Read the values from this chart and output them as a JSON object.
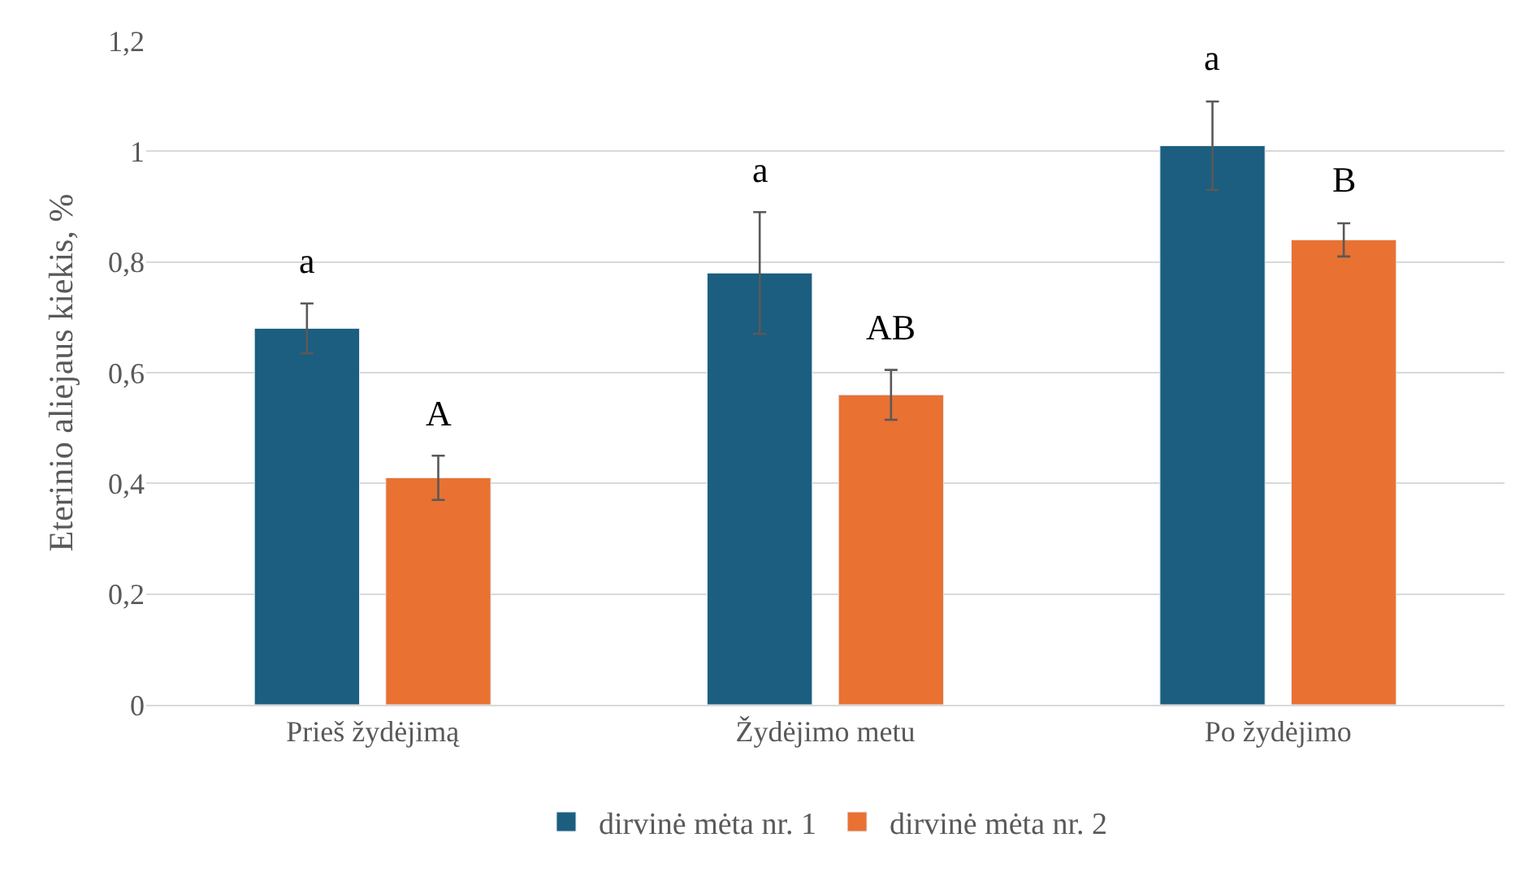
{
  "chart_data": {
    "type": "bar",
    "ylabel": "Eterinio aliejaus kiekis, %",
    "categories": [
      "Prieš žydėjimą",
      "Žydėjimo metu",
      "Po žydėjimo"
    ],
    "series": [
      {
        "name": "dirvinė mėta nr. 1",
        "color": "#1b5e7f",
        "values": [
          0.68,
          0.78,
          1.01
        ],
        "errors": [
          0.045,
          0.11,
          0.08
        ],
        "value_labels": [
          "a",
          "a",
          "a"
        ]
      },
      {
        "name": "dirvinė mėta nr. 2",
        "color": "#e97132",
        "values": [
          0.41,
          0.56,
          0.84
        ],
        "errors": [
          0.04,
          0.045,
          0.03
        ],
        "value_labels": [
          "A",
          "AB",
          "B"
        ]
      }
    ],
    "ylim": [
      0,
      1.2
    ],
    "yticks": [
      {
        "value": 0,
        "label": "0"
      },
      {
        "value": 0.2,
        "label": "0,2"
      },
      {
        "value": 0.4,
        "label": "0,4"
      },
      {
        "value": 0.6,
        "label": "0,6"
      },
      {
        "value": 0.8,
        "label": "0,8"
      },
      {
        "value": 1,
        "label": "1"
      },
      {
        "value": 1.2,
        "label": "1,2"
      }
    ],
    "grid": "y",
    "legend": "bottom"
  }
}
